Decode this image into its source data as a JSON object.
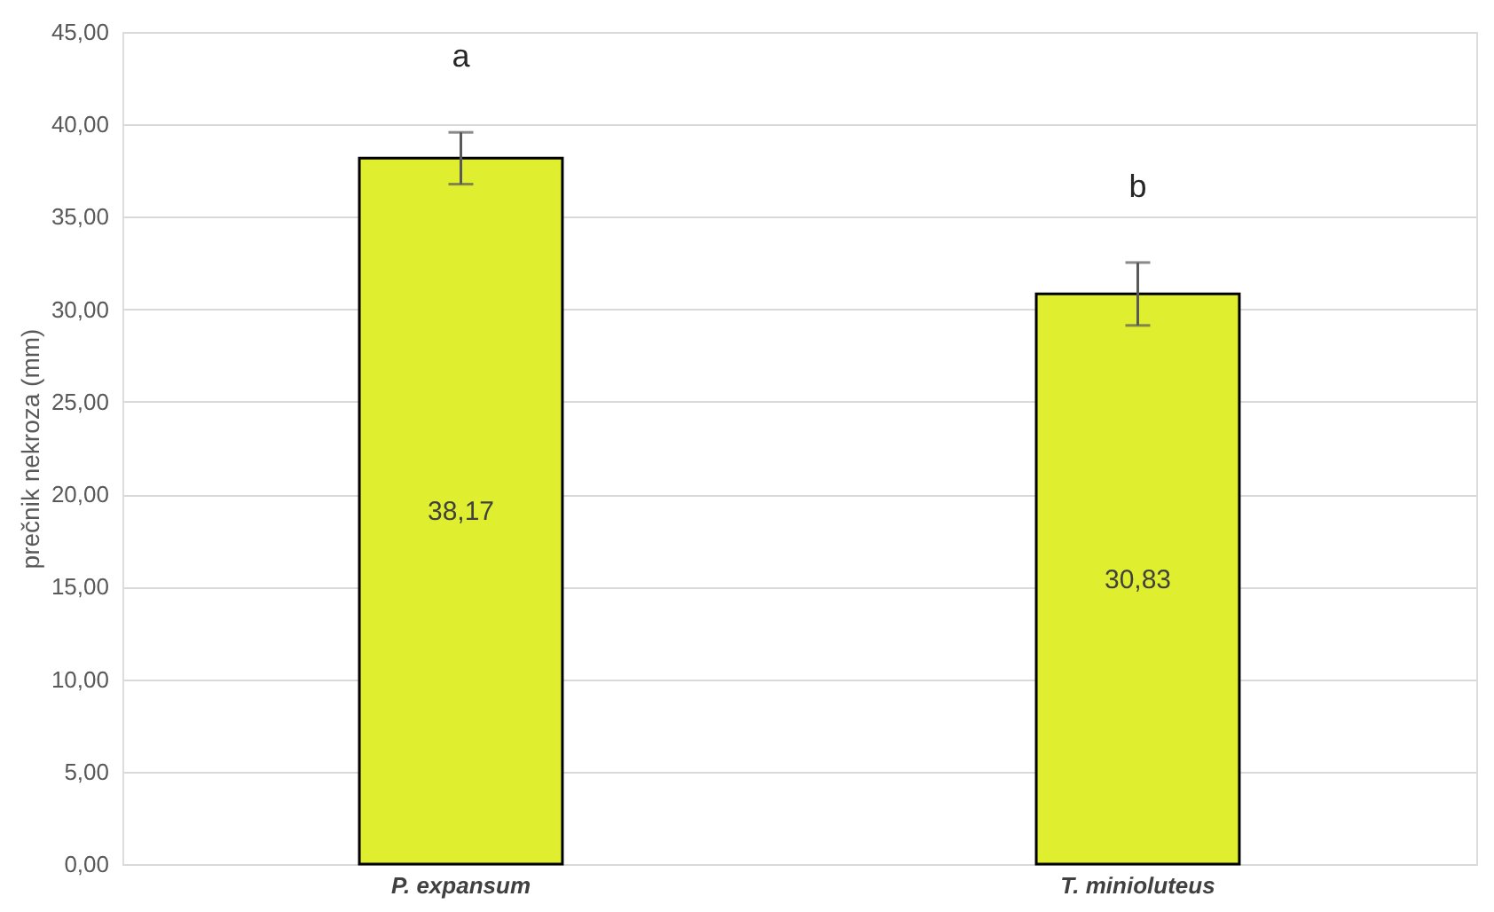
{
  "chart_data": {
    "type": "bar",
    "ylabel": "prečnik nekroza (mm)",
    "categories": [
      "P. expansum",
      "T. minioluteus"
    ],
    "values": [
      38.17,
      30.83
    ],
    "color": "#dfef2f",
    "errors": [
      1.4,
      1.7
    ],
    "value_labels": [
      "38,17",
      "30,83"
    ],
    "ylim": [
      0,
      45
    ],
    "yticks": [
      {
        "value": 0,
        "label": "0,00"
      },
      {
        "value": 5,
        "label": "5,00"
      },
      {
        "value": 10,
        "label": "10,00"
      },
      {
        "value": 15,
        "label": "15,00"
      },
      {
        "value": 20,
        "label": "20,00"
      },
      {
        "value": 25,
        "label": "25,00"
      },
      {
        "value": 30,
        "label": "30,00"
      },
      {
        "value": 35,
        "label": "35,00"
      },
      {
        "value": 40,
        "label": "40,00"
      },
      {
        "value": 45,
        "label": "45,00"
      }
    ],
    "grid": "y",
    "annotations": [
      "a",
      "b"
    ]
  }
}
